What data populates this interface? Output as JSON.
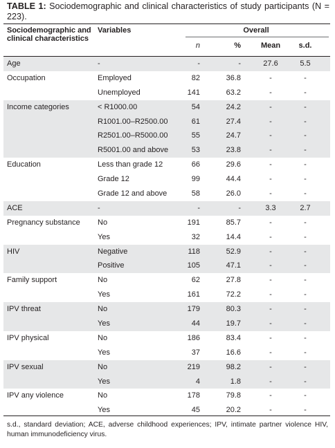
{
  "caption": {
    "label": "TABLE 1:",
    "text": "Sociodemographic and clinical characteristics of study participants (N = 223)."
  },
  "header": {
    "col1": "Sociodemographic and clinical characteristics",
    "col2": "Variables",
    "overall": "Overall",
    "n": "n",
    "pct": "%",
    "mean": "Mean",
    "sd": "s.d."
  },
  "rows": [
    {
      "char": "Age",
      "var": "-",
      "n": "-",
      "pct": "-",
      "mean": "27.6",
      "sd": "5.5",
      "shade": true
    },
    {
      "char": "Occupation",
      "var": "Employed",
      "n": "82",
      "pct": "36.8",
      "mean": "-",
      "sd": "-",
      "shade": false
    },
    {
      "char": "",
      "var": "Unemployed",
      "n": "141",
      "pct": "63.2",
      "mean": "-",
      "sd": "-",
      "shade": false
    },
    {
      "char": "Income categories",
      "var": "< R1000.00",
      "n": "54",
      "pct": "24.2",
      "mean": "-",
      "sd": "-",
      "shade": true
    },
    {
      "char": "",
      "var": "R1001.00–R2500.00",
      "n": "61",
      "pct": "27.4",
      "mean": "-",
      "sd": "-",
      "shade": true
    },
    {
      "char": "",
      "var": "R2501.00–R5000.00",
      "n": "55",
      "pct": "24.7",
      "mean": "-",
      "sd": "-",
      "shade": true
    },
    {
      "char": "",
      "var": "R5001.00 and above",
      "n": "53",
      "pct": "23.8",
      "mean": "-",
      "sd": "-",
      "shade": true
    },
    {
      "char": "Education",
      "var": "Less than grade 12",
      "n": "66",
      "pct": "29.6",
      "mean": "-",
      "sd": "-",
      "shade": false
    },
    {
      "char": "",
      "var": "Grade 12",
      "n": "99",
      "pct": "44.4",
      "mean": "-",
      "sd": "-",
      "shade": false
    },
    {
      "char": "",
      "var": "Grade 12 and above",
      "n": "58",
      "pct": "26.0",
      "mean": "-",
      "sd": "-",
      "shade": false
    },
    {
      "char": "ACE",
      "var": "-",
      "n": "-",
      "pct": "-",
      "mean": "3.3",
      "sd": "2.7",
      "shade": true
    },
    {
      "char": "Pregnancy substance",
      "var": "No",
      "n": "191",
      "pct": "85.7",
      "mean": "-",
      "sd": "-",
      "shade": false
    },
    {
      "char": "",
      "var": "Yes",
      "n": "32",
      "pct": "14.4",
      "mean": "-",
      "sd": "-",
      "shade": false
    },
    {
      "char": "HIV",
      "var": "Negative",
      "n": "118",
      "pct": "52.9",
      "mean": "-",
      "sd": "-",
      "shade": true
    },
    {
      "char": "",
      "var": "Positive",
      "n": "105",
      "pct": "47.1",
      "mean": "-",
      "sd": "-",
      "shade": true
    },
    {
      "char": "Family support",
      "var": "No",
      "n": "62",
      "pct": "27.8",
      "mean": "-",
      "sd": "-",
      "shade": false
    },
    {
      "char": "",
      "var": "Yes",
      "n": "161",
      "pct": "72.2",
      "mean": "-",
      "sd": "-",
      "shade": false
    },
    {
      "char": "IPV threat",
      "var": "No",
      "n": "179",
      "pct": "80.3",
      "mean": "-",
      "sd": "-",
      "shade": true
    },
    {
      "char": "",
      "var": "Yes",
      "n": "44",
      "pct": "19.7",
      "mean": "-",
      "sd": "-",
      "shade": true
    },
    {
      "char": "IPV physical",
      "var": "No",
      "n": "186",
      "pct": "83.4",
      "mean": "-",
      "sd": "-",
      "shade": false
    },
    {
      "char": "",
      "var": "Yes",
      "n": "37",
      "pct": "16.6",
      "mean": "-",
      "sd": "-",
      "shade": false
    },
    {
      "char": "IPV sexual",
      "var": "No",
      "n": "219",
      "pct": "98.2",
      "mean": "-",
      "sd": "-",
      "shade": true
    },
    {
      "char": "",
      "var": "Yes",
      "n": "4",
      "pct": "1.8",
      "mean": "-",
      "sd": "-",
      "shade": true
    },
    {
      "char": "IPV any violence",
      "var": "No",
      "n": "178",
      "pct": "79.8",
      "mean": "-",
      "sd": "-",
      "shade": false
    },
    {
      "char": "",
      "var": "Yes",
      "n": "45",
      "pct": "20.2",
      "mean": "-",
      "sd": "-",
      "shade": false
    }
  ],
  "footnote": "s.d., standard deviation; ACE, adverse childhood experiences; IPV, intimate partner violence HIV, human immunodeficiency virus.",
  "colors": {
    "shade": "#e6e7e8",
    "text": "#231f20"
  }
}
